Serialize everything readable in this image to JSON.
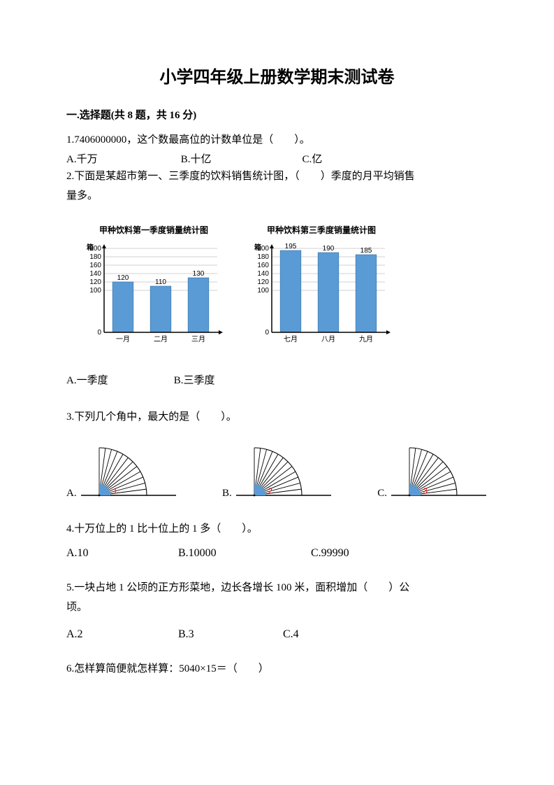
{
  "title": "小学四年级上册数学期末测试卷",
  "section1": {
    "heading": "一.选择题(共 8 题，共 16 分)"
  },
  "q1": {
    "text": "1.7406000000，这个数最高位的计数单位是（　　）。",
    "A": "A.千万",
    "B": "B.十亿",
    "C": "C.亿"
  },
  "q2": {
    "line1": "2.下面是某超市第一、三季度的饮料销售统计图，（　　）季度的月平均销售",
    "line2": "量多。",
    "A": "A.一季度",
    "B": "B.三季度"
  },
  "chart1": {
    "title": "甲种饮料第一季度销量统计图",
    "ylabel": "箱",
    "ymax": 200,
    "ystep": 20,
    "yticks": [
      0,
      100,
      120,
      140,
      160,
      180,
      200
    ],
    "categories": [
      "一月",
      "二月",
      "三月"
    ],
    "values": [
      120,
      110,
      130
    ],
    "bar_color": "#5b9bd5",
    "axis_color": "#000000",
    "grid_color": "#d0d0d0",
    "label_fontsize": 10
  },
  "chart2": {
    "title": "甲种饮料第三季度销量统计图",
    "ylabel": "箱",
    "ymax": 200,
    "ystep": 20,
    "yticks": [
      0,
      100,
      120,
      140,
      160,
      180,
      200
    ],
    "categories": [
      "七月",
      "八月",
      "九月"
    ],
    "values": [
      195,
      190,
      185
    ],
    "bar_color": "#5b9bd5",
    "axis_color": "#000000",
    "grid_color": "#d0d0d0",
    "label_fontsize": 10
  },
  "q3": {
    "text": "3.下列几个角中，最大的是（　　）。",
    "Alabel": "A.",
    "Blabel": "B.",
    "Clabel": "C.",
    "fan_angle_deg": 90,
    "ray_count": 13,
    "ray_color": "#000000",
    "arc_fill": "#5b9bd5",
    "number_color": "#ff0000",
    "numbers": [
      "1",
      "2",
      "3"
    ]
  },
  "q4": {
    "text": "4.十万位上的 1 比十位上的 1 多（　　）。",
    "A": "A.10",
    "B": "B.10000",
    "C": "C.99990"
  },
  "q5": {
    "line1": "5.一块占地 1 公顷的正方形菜地，边长各增长 100 米，面积增加（　　）公",
    "line2": "顷。",
    "A": "A.2",
    "B": "B.3",
    "C": "C.4"
  },
  "q6": {
    "text": "6.怎样算简便就怎样算：5040×15＝（　　）"
  }
}
